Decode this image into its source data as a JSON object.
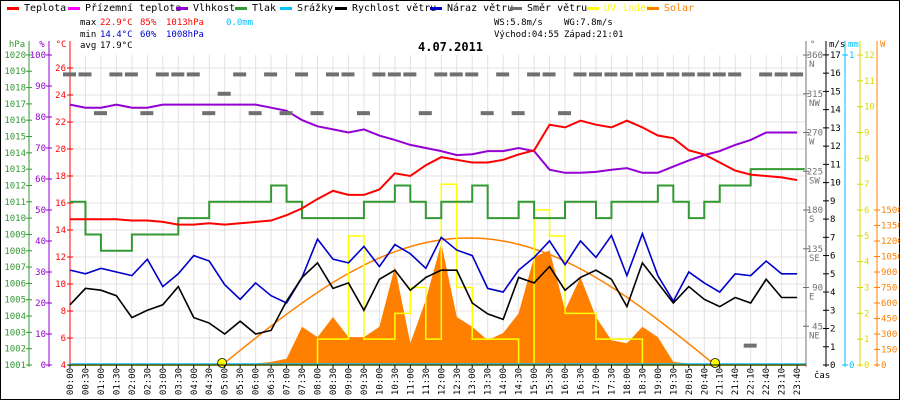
{
  "legend": [
    {
      "label": "Teplota",
      "color": "#ff0000"
    },
    {
      "label": "Přízemní teplota",
      "color": "#ff00ff"
    },
    {
      "label": "Vlhkost",
      "color": "#9400d3"
    },
    {
      "label": "Tlak",
      "color": "#339933"
    },
    {
      "label": "Srážky",
      "color": "#00bfff"
    },
    {
      "label": "Rychlost větru",
      "color": "#000000"
    },
    {
      "label": "Náraz větru",
      "color": "#0000cc"
    },
    {
      "label": "Směr větru",
      "color": "#707070"
    },
    {
      "label": "UV index",
      "color": "#ffff00"
    },
    {
      "label": "Solar",
      "color": "#ff8000"
    }
  ],
  "stats": {
    "max_label": "max",
    "max_temp": "22.9°C",
    "max_hum": "85%",
    "max_press": "1013hPa",
    "rain": "0.0mm",
    "min_label": "min",
    "min_temp": "14.4°C",
    "min_hum": "60%",
    "min_press": "1008hPa",
    "avg_label": "avg",
    "avg_temp": "17.9°C",
    "ws": "WS:5.8m/s",
    "wg": "WG:7.8m/s",
    "sunrise": "Východ:04:55",
    "sunset": "Západ:21:01"
  },
  "chart_data": {
    "type": "line",
    "title": "4.07.2011",
    "xlabel": "čas",
    "grid": true,
    "x": [
      "00:00",
      "00:30",
      "01:00",
      "01:30",
      "02:00",
      "02:30",
      "03:00",
      "03:30",
      "04:00",
      "04:30",
      "05:00",
      "05:30",
      "06:00",
      "06:30",
      "07:00",
      "07:30",
      "08:00",
      "08:30",
      "09:00",
      "09:30",
      "10:00",
      "10:30",
      "11:00",
      "11:30",
      "12:00",
      "12:30",
      "13:00",
      "13:30",
      "14:00",
      "14:30",
      "15:00",
      "15:30",
      "16:00",
      "16:30",
      "17:00",
      "17:30",
      "18:00",
      "18:30",
      "19:00",
      "19:30",
      "20:05",
      "20:40",
      "21:10",
      "21:40",
      "22:10",
      "22:40",
      "23:10",
      "23:40"
    ],
    "axes": {
      "pressure": {
        "unit": "hPa",
        "ticks": [
          1001,
          1002,
          1003,
          1004,
          1005,
          1006,
          1007,
          1008,
          1009,
          1010,
          1011,
          1012,
          1013,
          1014,
          1015,
          1016,
          1017,
          1018,
          1019,
          1020
        ],
        "color": "#339933"
      },
      "humidity": {
        "unit": "%",
        "ticks": [
          0,
          10,
          20,
          30,
          40,
          50,
          60,
          70,
          80,
          90,
          100
        ],
        "color": "#9400d3"
      },
      "temperature": {
        "unit": "°C",
        "ticks": [
          4,
          6,
          8,
          10,
          12,
          14,
          16,
          18,
          20,
          22,
          24,
          26
        ],
        "color": "#ff0000"
      },
      "direction": {
        "unit": "°",
        "ticks": [
          45,
          90,
          135,
          180,
          225,
          270,
          315,
          360
        ],
        "names": [
          "NE",
          "E",
          "SE",
          "S",
          "SW",
          "W",
          "NW",
          "N"
        ],
        "color": "#707070"
      },
      "wind": {
        "unit": "m/s",
        "ticks": [
          0,
          1,
          2,
          3,
          4,
          5,
          6,
          7,
          8,
          9,
          10,
          11,
          12,
          13,
          14,
          15,
          16,
          17
        ],
        "color": "#000000"
      },
      "rain": {
        "unit": "mm",
        "ticks": [
          0,
          1
        ],
        "color": "#00bfff"
      },
      "uv": {
        "unit": "",
        "ticks": [
          0,
          1,
          2,
          3,
          4,
          5,
          6,
          7,
          8,
          9,
          10,
          11,
          12
        ],
        "color": "#d8d800"
      },
      "solar": {
        "unit": "W",
        "ticks": [
          0,
          150,
          300,
          450,
          600,
          750,
          900,
          1050,
          1200,
          1350,
          1500
        ],
        "color": "#ff8000"
      }
    },
    "series": [
      {
        "name": "Teplota",
        "axis": "temperature",
        "values": [
          14.8,
          14.8,
          14.8,
          14.8,
          14.7,
          14.7,
          14.6,
          14.4,
          14.4,
          14.5,
          14.4,
          14.5,
          14.6,
          14.7,
          15.1,
          15.6,
          16.3,
          16.9,
          16.6,
          16.6,
          17.0,
          18.2,
          18.0,
          18.8,
          19.4,
          19.2,
          19.0,
          19.0,
          19.2,
          19.6,
          19.9,
          21.8,
          21.6,
          22.1,
          21.8,
          21.6,
          22.1,
          21.6,
          21.0,
          20.8,
          19.9,
          19.6,
          19.0,
          18.4,
          18.1,
          18.0,
          17.9,
          17.7
        ]
      },
      {
        "name": "Vlhkost",
        "axis": "humidity",
        "values": [
          84,
          83,
          83,
          84,
          83,
          83,
          84,
          84,
          84,
          84,
          84,
          84,
          84,
          83,
          82,
          79,
          77,
          76,
          75,
          76,
          74,
          72.6,
          71,
          70,
          69,
          67.7,
          68,
          69,
          69,
          70,
          69,
          63,
          62,
          62,
          62.3,
          63,
          63.5,
          62,
          62,
          64,
          66,
          67.7,
          69,
          71,
          72.6,
          75,
          75,
          75
        ]
      },
      {
        "name": "Tlak",
        "axis": "pressure",
        "values": [
          1011,
          1009,
          1008,
          1008,
          1009,
          1009,
          1009,
          1010,
          1010,
          1011,
          1011,
          1011,
          1011,
          1012,
          1011,
          1010,
          1010,
          1010,
          1010,
          1011,
          1011,
          1012,
          1011,
          1010,
          1011,
          1011,
          1012,
          1010,
          1010,
          1011,
          1010,
          1010,
          1011,
          1011,
          1010,
          1011,
          1011,
          1011,
          1012,
          1011,
          1010,
          1011,
          1012,
          1012,
          1013,
          1013,
          1013,
          1013
        ]
      },
      {
        "name": "Srážky",
        "axis": "rain",
        "values": [
          0,
          0,
          0,
          0,
          0,
          0,
          0,
          0,
          0,
          0,
          0,
          0,
          0,
          0,
          0,
          0,
          0,
          0,
          0,
          0,
          0,
          0,
          0,
          0,
          0,
          0,
          0,
          0,
          0,
          0,
          0,
          0,
          0,
          0,
          0,
          0,
          0,
          0,
          0,
          0,
          0,
          0,
          0,
          0,
          0,
          0,
          0,
          0
        ]
      },
      {
        "name": "Rychlost větru",
        "axis": "wind",
        "values": [
          3.3,
          4.2,
          4.1,
          3.8,
          2.6,
          3.0,
          3.3,
          4.3,
          2.6,
          2.3,
          1.7,
          2.4,
          1.7,
          1.9,
          3.5,
          4.8,
          5.6,
          4.2,
          4.5,
          3.0,
          4.7,
          5.2,
          4.1,
          4.8,
          5.2,
          5.2,
          3.4,
          2.8,
          2.5,
          4.8,
          4.5,
          5.4,
          4.1,
          4.8,
          5.2,
          4.7,
          3.2,
          5.6,
          4.5,
          3.4,
          4.3,
          3.6,
          3.2,
          3.7,
          3.4,
          4.7,
          3.7,
          3.7
        ]
      },
      {
        "name": "Náraz větru",
        "axis": "wind",
        "values": [
          5.2,
          5.0,
          5.3,
          5.1,
          4.9,
          5.8,
          4.3,
          5.0,
          6.0,
          5.7,
          4.4,
          3.6,
          4.5,
          3.8,
          3.4,
          4.8,
          6.9,
          5.8,
          5.6,
          6.5,
          5.4,
          6.6,
          6.1,
          5.3,
          7.0,
          6.3,
          6.0,
          4.2,
          4.0,
          5.2,
          5.9,
          6.8,
          5.5,
          6.8,
          5.9,
          7.1,
          4.9,
          7.2,
          4.9,
          3.5,
          5.1,
          4.5,
          4.0,
          5.0,
          4.9,
          5.7,
          5.0,
          5.0
        ]
      },
      {
        "name": "Směr větru",
        "axis": "direction",
        "values": [
          337.5,
          337.5,
          292.5,
          337.5,
          337.5,
          292.5,
          337.5,
          337.5,
          337.5,
          292.5,
          315,
          337.5,
          292.5,
          337.5,
          292.5,
          337.5,
          292.5,
          337.5,
          337.5,
          292.5,
          337.5,
          337.5,
          337.5,
          292.5,
          337.5,
          337.5,
          337.5,
          292.5,
          337.5,
          292.5,
          337.5,
          337.5,
          292.5,
          337.5,
          337.5,
          337.5,
          337.5,
          337.5,
          337.5,
          337.5,
          337.5,
          337.5,
          337.5,
          337.5,
          22.5,
          337.5,
          337.5,
          337.5
        ]
      },
      {
        "name": "UV index",
        "axis": "uv",
        "values": [
          0,
          0,
          0,
          0,
          0,
          0,
          0,
          0,
          0,
          0,
          0,
          0,
          0,
          0,
          0,
          0,
          1,
          1,
          5,
          1,
          1,
          2,
          3,
          1,
          7,
          3,
          1,
          1,
          1,
          0,
          6,
          5,
          2,
          2,
          1,
          1,
          1,
          0,
          0,
          0,
          0,
          0,
          0,
          0,
          0,
          0,
          0,
          0
        ]
      },
      {
        "name": "Solar",
        "axis": "solar",
        "values": [
          0,
          0,
          0,
          0,
          0,
          0,
          0,
          0,
          0,
          0,
          0,
          5,
          15,
          30,
          60,
          370,
          270,
          465,
          270,
          270,
          370,
          950,
          210,
          630,
          1180,
          465,
          370,
          240,
          310,
          500,
          1045,
          1110,
          530,
          850,
          465,
          240,
          210,
          370,
          270,
          30,
          15,
          5,
          0,
          0,
          0,
          0,
          0,
          0
        ]
      }
    ],
    "solar_theoretical_peak": 1230,
    "sunrise": "04:55",
    "sunset": "21:01"
  }
}
